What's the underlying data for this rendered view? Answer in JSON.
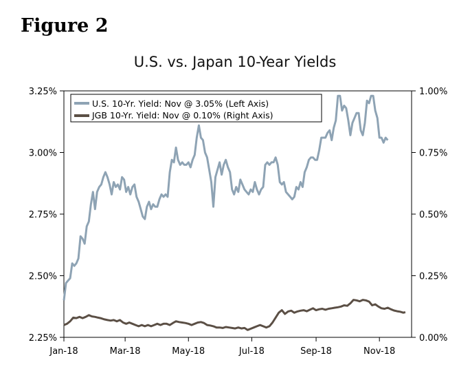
{
  "figure_label": "Figure 2",
  "chart_data": {
    "type": "line",
    "title": "U.S. vs. Japan 10-Year Yields",
    "x_tick_labels": [
      "Jan-18",
      "Mar-18",
      "May-18",
      "Jul-18",
      "Sep-18",
      "Nov-18"
    ],
    "x_range_days": [
      0,
      335
    ],
    "x_tick_days": [
      0,
      59,
      120,
      181,
      243,
      304
    ],
    "y_left": {
      "label": "",
      "ylim": [
        2.25,
        3.25
      ],
      "ticks": [
        2.25,
        2.5,
        2.75,
        3.0,
        3.25
      ],
      "tick_labels": [
        "2.25%",
        "2.50%",
        "2.75%",
        "3.00%",
        "3.25%"
      ]
    },
    "y_right": {
      "label": "",
      "ylim": [
        0.0,
        1.0
      ],
      "ticks": [
        0.0,
        0.25,
        0.5,
        0.75,
        1.0
      ],
      "tick_labels": [
        "0.00%",
        "0.25%",
        "0.50%",
        "0.75%",
        "1.00%"
      ]
    },
    "legend_position": "top-left",
    "series": [
      {
        "name": "U.S. 10-Yr. Yield: Nov @ 3.05% (Left Axis)",
        "axis": "left",
        "color": "#8ea3b4",
        "points": [
          [
            0,
            2.4
          ],
          [
            2,
            2.47
          ],
          [
            4,
            2.48
          ],
          [
            6,
            2.49
          ],
          [
            8,
            2.55
          ],
          [
            10,
            2.54
          ],
          [
            12,
            2.55
          ],
          [
            14,
            2.57
          ],
          [
            16,
            2.66
          ],
          [
            18,
            2.65
          ],
          [
            20,
            2.63
          ],
          [
            22,
            2.7
          ],
          [
            24,
            2.72
          ],
          [
            26,
            2.79
          ],
          [
            28,
            2.84
          ],
          [
            30,
            2.77
          ],
          [
            32,
            2.84
          ],
          [
            34,
            2.86
          ],
          [
            36,
            2.87
          ],
          [
            38,
            2.9
          ],
          [
            40,
            2.92
          ],
          [
            42,
            2.9
          ],
          [
            44,
            2.87
          ],
          [
            46,
            2.83
          ],
          [
            48,
            2.88
          ],
          [
            50,
            2.86
          ],
          [
            52,
            2.87
          ],
          [
            54,
            2.85
          ],
          [
            56,
            2.9
          ],
          [
            58,
            2.89
          ],
          [
            60,
            2.84
          ],
          [
            62,
            2.86
          ],
          [
            64,
            2.83
          ],
          [
            66,
            2.86
          ],
          [
            68,
            2.87
          ],
          [
            70,
            2.82
          ],
          [
            72,
            2.8
          ],
          [
            74,
            2.77
          ],
          [
            76,
            2.74
          ],
          [
            78,
            2.73
          ],
          [
            80,
            2.78
          ],
          [
            82,
            2.8
          ],
          [
            84,
            2.77
          ],
          [
            86,
            2.79
          ],
          [
            88,
            2.78
          ],
          [
            90,
            2.78
          ],
          [
            92,
            2.81
          ],
          [
            94,
            2.83
          ],
          [
            96,
            2.82
          ],
          [
            98,
            2.83
          ],
          [
            100,
            2.82
          ],
          [
            102,
            2.92
          ],
          [
            104,
            2.97
          ],
          [
            106,
            2.96
          ],
          [
            108,
            3.02
          ],
          [
            110,
            2.97
          ],
          [
            112,
            2.95
          ],
          [
            114,
            2.96
          ],
          [
            116,
            2.95
          ],
          [
            118,
            2.95
          ],
          [
            120,
            2.96
          ],
          [
            122,
            2.94
          ],
          [
            124,
            2.97
          ],
          [
            126,
            2.99
          ],
          [
            128,
            3.06
          ],
          [
            130,
            3.11
          ],
          [
            132,
            3.06
          ],
          [
            134,
            3.05
          ],
          [
            136,
            3.0
          ],
          [
            138,
            2.98
          ],
          [
            140,
            2.93
          ],
          [
            142,
            2.88
          ],
          [
            144,
            2.78
          ],
          [
            146,
            2.9
          ],
          [
            148,
            2.93
          ],
          [
            150,
            2.96
          ],
          [
            152,
            2.91
          ],
          [
            154,
            2.95
          ],
          [
            156,
            2.97
          ],
          [
            158,
            2.94
          ],
          [
            160,
            2.92
          ],
          [
            162,
            2.85
          ],
          [
            164,
            2.83
          ],
          [
            166,
            2.86
          ],
          [
            168,
            2.84
          ],
          [
            170,
            2.89
          ],
          [
            172,
            2.87
          ],
          [
            174,
            2.85
          ],
          [
            176,
            2.84
          ],
          [
            178,
            2.83
          ],
          [
            180,
            2.85
          ],
          [
            182,
            2.84
          ],
          [
            184,
            2.88
          ],
          [
            186,
            2.85
          ],
          [
            188,
            2.83
          ],
          [
            190,
            2.85
          ],
          [
            192,
            2.86
          ],
          [
            194,
            2.95
          ],
          [
            196,
            2.96
          ],
          [
            198,
            2.95
          ],
          [
            200,
            2.96
          ],
          [
            202,
            2.96
          ],
          [
            204,
            2.98
          ],
          [
            206,
            2.95
          ],
          [
            208,
            2.88
          ],
          [
            210,
            2.87
          ],
          [
            212,
            2.88
          ],
          [
            214,
            2.84
          ],
          [
            216,
            2.83
          ],
          [
            218,
            2.82
          ],
          [
            220,
            2.81
          ],
          [
            222,
            2.82
          ],
          [
            224,
            2.86
          ],
          [
            226,
            2.85
          ],
          [
            228,
            2.88
          ],
          [
            230,
            2.86
          ],
          [
            232,
            2.92
          ],
          [
            234,
            2.94
          ],
          [
            236,
            2.97
          ],
          [
            238,
            2.98
          ],
          [
            240,
            2.98
          ],
          [
            242,
            2.97
          ],
          [
            244,
            2.97
          ],
          [
            246,
            3.01
          ],
          [
            248,
            3.06
          ],
          [
            250,
            3.06
          ],
          [
            252,
            3.06
          ],
          [
            254,
            3.08
          ],
          [
            256,
            3.09
          ],
          [
            258,
            3.05
          ],
          [
            260,
            3.1
          ],
          [
            262,
            3.13
          ],
          [
            264,
            3.23
          ],
          [
            266,
            3.23
          ],
          [
            268,
            3.17
          ],
          [
            270,
            3.19
          ],
          [
            272,
            3.18
          ],
          [
            274,
            3.13
          ],
          [
            276,
            3.07
          ],
          [
            278,
            3.12
          ],
          [
            280,
            3.14
          ],
          [
            282,
            3.16
          ],
          [
            284,
            3.16
          ],
          [
            286,
            3.09
          ],
          [
            288,
            3.07
          ],
          [
            290,
            3.12
          ],
          [
            292,
            3.21
          ],
          [
            294,
            3.2
          ],
          [
            296,
            3.23
          ],
          [
            298,
            3.23
          ],
          [
            300,
            3.17
          ],
          [
            302,
            3.14
          ],
          [
            304,
            3.06
          ],
          [
            306,
            3.06
          ],
          [
            308,
            3.04
          ],
          [
            310,
            3.06
          ],
          [
            312,
            3.05
          ]
        ]
      },
      {
        "name": "JGB 10-Yr. Yield: Nov @ 0.10% (Right Axis)",
        "axis": "right",
        "color": "#5b4f45",
        "points": [
          [
            0,
            0.05
          ],
          [
            3,
            0.055
          ],
          [
            6,
            0.065
          ],
          [
            9,
            0.08
          ],
          [
            12,
            0.078
          ],
          [
            15,
            0.083
          ],
          [
            18,
            0.078
          ],
          [
            21,
            0.083
          ],
          [
            24,
            0.09
          ],
          [
            27,
            0.085
          ],
          [
            30,
            0.083
          ],
          [
            33,
            0.08
          ],
          [
            36,
            0.077
          ],
          [
            39,
            0.073
          ],
          [
            42,
            0.07
          ],
          [
            45,
            0.068
          ],
          [
            48,
            0.07
          ],
          [
            51,
            0.065
          ],
          [
            54,
            0.07
          ],
          [
            57,
            0.06
          ],
          [
            60,
            0.055
          ],
          [
            63,
            0.06
          ],
          [
            66,
            0.055
          ],
          [
            69,
            0.05
          ],
          [
            72,
            0.045
          ],
          [
            75,
            0.05
          ],
          [
            78,
            0.045
          ],
          [
            81,
            0.05
          ],
          [
            84,
            0.045
          ],
          [
            87,
            0.05
          ],
          [
            90,
            0.055
          ],
          [
            93,
            0.05
          ],
          [
            96,
            0.055
          ],
          [
            99,
            0.055
          ],
          [
            102,
            0.05
          ],
          [
            105,
            0.058
          ],
          [
            108,
            0.065
          ],
          [
            111,
            0.062
          ],
          [
            114,
            0.06
          ],
          [
            117,
            0.058
          ],
          [
            120,
            0.055
          ],
          [
            123,
            0.05
          ],
          [
            126,
            0.055
          ],
          [
            129,
            0.06
          ],
          [
            132,
            0.062
          ],
          [
            135,
            0.058
          ],
          [
            138,
            0.05
          ],
          [
            141,
            0.048
          ],
          [
            144,
            0.045
          ],
          [
            147,
            0.04
          ],
          [
            150,
            0.04
          ],
          [
            153,
            0.038
          ],
          [
            156,
            0.042
          ],
          [
            159,
            0.04
          ],
          [
            162,
            0.038
          ],
          [
            165,
            0.036
          ],
          [
            168,
            0.04
          ],
          [
            171,
            0.036
          ],
          [
            174,
            0.038
          ],
          [
            177,
            0.03
          ],
          [
            180,
            0.035
          ],
          [
            183,
            0.04
          ],
          [
            186,
            0.045
          ],
          [
            189,
            0.05
          ],
          [
            192,
            0.045
          ],
          [
            195,
            0.04
          ],
          [
            198,
            0.045
          ],
          [
            201,
            0.06
          ],
          [
            204,
            0.08
          ],
          [
            207,
            0.1
          ],
          [
            210,
            0.11
          ],
          [
            213,
            0.095
          ],
          [
            216,
            0.105
          ],
          [
            219,
            0.108
          ],
          [
            222,
            0.1
          ],
          [
            225,
            0.105
          ],
          [
            228,
            0.108
          ],
          [
            231,
            0.11
          ],
          [
            234,
            0.106
          ],
          [
            237,
            0.112
          ],
          [
            240,
            0.118
          ],
          [
            243,
            0.11
          ],
          [
            246,
            0.114
          ],
          [
            249,
            0.116
          ],
          [
            252,
            0.112
          ],
          [
            255,
            0.116
          ],
          [
            258,
            0.118
          ],
          [
            261,
            0.12
          ],
          [
            264,
            0.122
          ],
          [
            267,
            0.125
          ],
          [
            270,
            0.13
          ],
          [
            273,
            0.128
          ],
          [
            276,
            0.138
          ],
          [
            279,
            0.152
          ],
          [
            282,
            0.15
          ],
          [
            285,
            0.146
          ],
          [
            288,
            0.152
          ],
          [
            291,
            0.15
          ],
          [
            294,
            0.145
          ],
          [
            297,
            0.13
          ],
          [
            300,
            0.134
          ],
          [
            303,
            0.125
          ],
          [
            306,
            0.118
          ],
          [
            309,
            0.116
          ],
          [
            312,
            0.12
          ],
          [
            315,
            0.114
          ],
          [
            318,
            0.109
          ],
          [
            321,
            0.106
          ],
          [
            324,
            0.104
          ],
          [
            327,
            0.1
          ],
          [
            329,
            0.102
          ]
        ]
      }
    ]
  }
}
